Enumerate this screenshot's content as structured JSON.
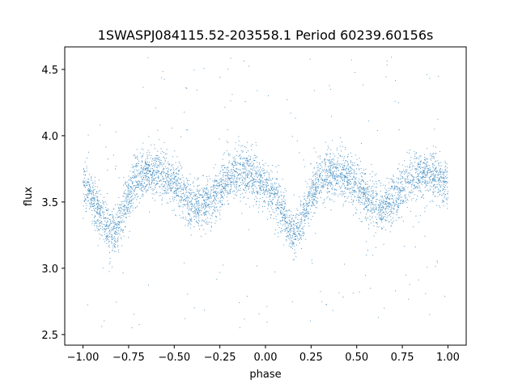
{
  "chart_data": {
    "type": "scatter",
    "title": "1SWASPJ084115.52-203558.1 Period 60239.60156s",
    "xlabel": "phase",
    "ylabel": "flux",
    "xlim": [
      -1.1,
      1.1
    ],
    "ylim": [
      2.42,
      4.67
    ],
    "xticks": [
      -1.0,
      -0.75,
      -0.5,
      -0.25,
      0.0,
      0.25,
      0.5,
      0.75,
      1.0
    ],
    "xtick_labels": [
      "−1.00",
      "−0.75",
      "−0.50",
      "−0.25",
      "0.00",
      "0.25",
      "0.50",
      "0.75",
      "1.00"
    ],
    "yticks": [
      2.5,
      3.0,
      3.5,
      4.0,
      4.5
    ],
    "ytick_labels": [
      "2.5",
      "3.0",
      "3.5",
      "4.0",
      "4.5"
    ],
    "grid": false,
    "legend": "none",
    "marker_color": "#1f77b4",
    "series": [
      {
        "x": [
          -1.0,
          -0.95,
          -0.9,
          -0.85,
          -0.8,
          -0.75,
          -0.7,
          -0.65,
          -0.6,
          -0.55,
          -0.5,
          -0.45,
          -0.4,
          -0.35,
          -0.3,
          -0.25,
          -0.2,
          -0.15,
          -0.1,
          -0.05,
          0.0,
          0.05,
          0.1,
          0.15,
          0.2,
          0.25,
          0.3,
          0.35,
          0.4,
          0.45,
          0.5,
          0.55,
          0.6,
          0.65,
          0.7,
          0.75,
          0.8,
          0.85,
          0.9,
          0.95,
          1.0
        ],
        "y": [
          3.63,
          3.55,
          3.4,
          3.25,
          3.35,
          3.55,
          3.68,
          3.72,
          3.72,
          3.69,
          3.62,
          3.55,
          3.48,
          3.47,
          3.52,
          3.6,
          3.68,
          3.72,
          3.72,
          3.68,
          3.63,
          3.55,
          3.4,
          3.25,
          3.35,
          3.55,
          3.68,
          3.72,
          3.72,
          3.69,
          3.62,
          3.55,
          3.48,
          3.47,
          3.52,
          3.6,
          3.68,
          3.72,
          3.72,
          3.68,
          3.63
        ],
        "scatter_sd": 0.09,
        "outlier_range": [
          2.55,
          4.6
        ]
      }
    ]
  }
}
